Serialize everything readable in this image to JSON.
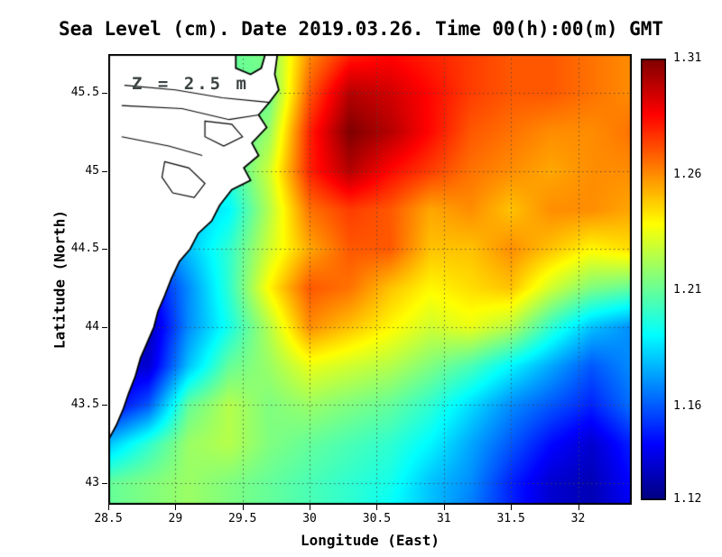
{
  "title": "Sea Level (cm). Date 2019.03.26. Time 00(h):00(m) GMT",
  "annotation": "Z = 2.5 m",
  "axes": {
    "xlabel": "Longitude (East)",
    "ylabel": "Latitude (North)",
    "xtick_values": [
      28.5,
      29,
      29.5,
      30,
      30.5,
      31,
      31.5,
      32
    ],
    "xtick_labels": [
      "28.5",
      "29",
      "29.5",
      "30",
      "30.5",
      "31",
      "31.5",
      "32"
    ],
    "ytick_values": [
      43,
      43.5,
      44,
      44.5,
      45,
      45.5
    ],
    "ytick_labels": [
      "43",
      "43.5",
      "44",
      "44.5",
      "45",
      "45.5"
    ]
  },
  "colorbar": {
    "min": 1.12,
    "max": 1.31,
    "tick_values": [
      1.31,
      1.26,
      1.21,
      1.16,
      1.12
    ],
    "tick_labels": [
      "1.31",
      "1.26",
      "1.21",
      "1.16",
      "1.12"
    ]
  },
  "chart_data": {
    "type": "heatmap",
    "title": "Sea Level (cm). Date 2019.03.26. Time 00(h):00(m) GMT",
    "xlabel": "Longitude (East)",
    "ylabel": "Latitude (North)",
    "depth_annotation": "Z = 2.5 m",
    "colormap": "jet",
    "grid": "dotted",
    "x_range": [
      28.5,
      32.4
    ],
    "y_range": [
      42.86,
      45.75
    ],
    "value_range": [
      1.12,
      1.31
    ],
    "x": [
      28.5,
      28.8,
      29.1,
      29.4,
      29.7,
      30.0,
      30.3,
      30.6,
      30.9,
      31.2,
      31.5,
      31.8,
      32.1,
      32.4
    ],
    "y": [
      45.75,
      45.5,
      45.25,
      45.0,
      44.75,
      44.5,
      44.25,
      44.0,
      43.75,
      43.5,
      43.25,
      43.0,
      42.75
    ],
    "values": [
      [
        1.21,
        1.21,
        1.21,
        1.21,
        1.215,
        1.26,
        1.28,
        1.285,
        1.28,
        1.275,
        1.27,
        1.27,
        1.265,
        1.26
      ],
      [
        1.21,
        1.21,
        1.21,
        1.21,
        1.21,
        1.27,
        1.3,
        1.295,
        1.285,
        1.275,
        1.27,
        1.27,
        1.265,
        1.26
      ],
      [
        1.2,
        1.2,
        1.2,
        1.2,
        1.22,
        1.28,
        1.31,
        1.3,
        1.285,
        1.27,
        1.265,
        1.26,
        1.26,
        1.265
      ],
      [
        1.2,
        1.2,
        1.2,
        1.2,
        1.23,
        1.28,
        1.3,
        1.285,
        1.275,
        1.265,
        1.26,
        1.255,
        1.26,
        1.26
      ],
      [
        1.19,
        1.19,
        1.18,
        1.19,
        1.225,
        1.265,
        1.275,
        1.27,
        1.255,
        1.26,
        1.25,
        1.26,
        1.26,
        1.255
      ],
      [
        1.17,
        1.16,
        1.18,
        1.2,
        1.23,
        1.255,
        1.27,
        1.27,
        1.25,
        1.25,
        1.26,
        1.25,
        1.24,
        1.245
      ],
      [
        1.15,
        1.14,
        1.17,
        1.2,
        1.24,
        1.27,
        1.265,
        1.25,
        1.24,
        1.245,
        1.25,
        1.23,
        1.215,
        1.21
      ],
      [
        1.14,
        1.13,
        1.17,
        1.195,
        1.225,
        1.26,
        1.25,
        1.24,
        1.23,
        1.235,
        1.225,
        1.2,
        1.18,
        1.17
      ],
      [
        1.135,
        1.135,
        1.18,
        1.21,
        1.22,
        1.235,
        1.23,
        1.225,
        1.215,
        1.205,
        1.19,
        1.175,
        1.16,
        1.17
      ],
      [
        1.14,
        1.16,
        1.21,
        1.225,
        1.215,
        1.22,
        1.215,
        1.21,
        1.2,
        1.185,
        1.17,
        1.16,
        1.15,
        1.165
      ],
      [
        1.18,
        1.2,
        1.22,
        1.225,
        1.215,
        1.21,
        1.205,
        1.2,
        1.19,
        1.175,
        1.16,
        1.145,
        1.135,
        1.15
      ],
      [
        1.21,
        1.215,
        1.22,
        1.215,
        1.21,
        1.205,
        1.2,
        1.195,
        1.18,
        1.17,
        1.15,
        1.135,
        1.13,
        1.145
      ],
      [
        1.21,
        1.215,
        1.22,
        1.215,
        1.21,
        1.205,
        1.2,
        1.19,
        1.18,
        1.165,
        1.15,
        1.135,
        1.13,
        1.14
      ]
    ],
    "coastline": [
      [
        29.45,
        45.75
      ],
      [
        29.45,
        45.66
      ],
      [
        29.56,
        45.62
      ],
      [
        29.64,
        45.66
      ],
      [
        29.67,
        45.75
      ],
      [
        29.76,
        45.75
      ],
      [
        29.74,
        45.62
      ],
      [
        29.77,
        45.52
      ],
      [
        29.7,
        45.44
      ],
      [
        29.62,
        45.36
      ],
      [
        29.68,
        45.28
      ],
      [
        29.57,
        45.18
      ],
      [
        29.62,
        45.1
      ],
      [
        29.51,
        45.02
      ],
      [
        29.56,
        44.94
      ],
      [
        29.42,
        44.88
      ],
      [
        29.33,
        44.78
      ],
      [
        29.27,
        44.68
      ],
      [
        29.17,
        44.6
      ],
      [
        29.11,
        44.5
      ],
      [
        29.03,
        44.42
      ],
      [
        28.97,
        44.31
      ],
      [
        28.92,
        44.2
      ],
      [
        28.87,
        44.1
      ],
      [
        28.84,
        44.0
      ],
      [
        28.79,
        43.9
      ],
      [
        28.74,
        43.8
      ],
      [
        28.7,
        43.68
      ],
      [
        28.65,
        43.57
      ],
      [
        28.61,
        43.47
      ],
      [
        28.56,
        43.37
      ],
      [
        28.51,
        43.29
      ],
      [
        28.5,
        43.26
      ]
    ],
    "lakes": [
      [
        [
          28.92,
          45.06
        ],
        [
          29.1,
          45.02
        ],
        [
          29.22,
          44.92
        ],
        [
          29.14,
          44.83
        ],
        [
          28.98,
          44.86
        ],
        [
          28.9,
          44.96
        ]
      ],
      [
        [
          29.22,
          45.32
        ],
        [
          29.42,
          45.3
        ],
        [
          29.5,
          45.22
        ],
        [
          29.36,
          45.16
        ],
        [
          29.22,
          45.22
        ]
      ]
    ],
    "rivers": [
      [
        [
          28.6,
          45.42
        ],
        [
          29.05,
          45.4
        ],
        [
          29.4,
          45.33
        ],
        [
          29.62,
          45.36
        ]
      ],
      [
        [
          28.6,
          45.22
        ],
        [
          28.95,
          45.16
        ],
        [
          29.2,
          45.1
        ]
      ],
      [
        [
          28.62,
          45.55
        ],
        [
          29.0,
          45.52
        ],
        [
          29.35,
          45.47
        ],
        [
          29.7,
          45.44
        ]
      ]
    ]
  }
}
